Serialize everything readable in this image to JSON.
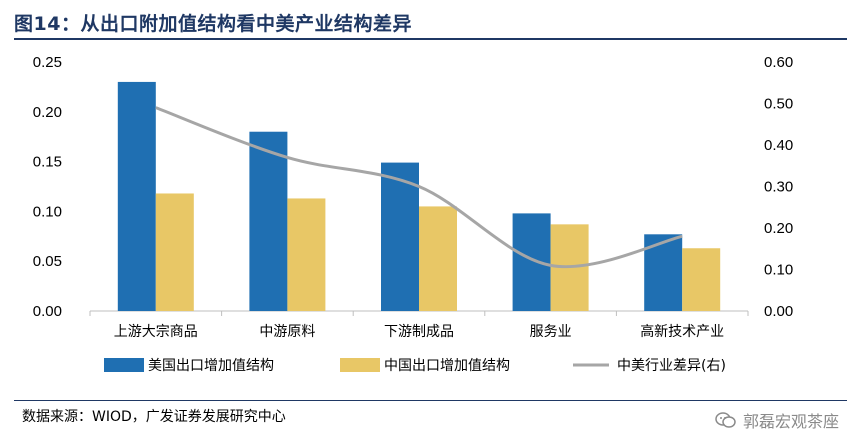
{
  "figure": {
    "title": "图14：从出口附加值结构看中美产业结构差异",
    "source": "数据来源：WIOD，广发证券发展研究中心",
    "watermark": "郭磊宏观茶座"
  },
  "colors": {
    "us_bar": "#1f6fb2",
    "cn_bar": "#e8c766",
    "diff_line": "#a6a6a6",
    "title": "#1f3864"
  },
  "chart_data": {
    "type": "bar",
    "categories": [
      "上游大宗商品",
      "中游原料",
      "下游制成品",
      "服务业",
      "高新技术产业"
    ],
    "series": [
      {
        "name": "美国出口增加值结构",
        "type": "bar",
        "axis": "left",
        "values": [
          0.23,
          0.18,
          0.149,
          0.098,
          0.077
        ]
      },
      {
        "name": "中国出口增加值结构",
        "type": "bar",
        "axis": "left",
        "values": [
          0.118,
          0.113,
          0.105,
          0.087,
          0.063
        ]
      },
      {
        "name": "中美行业差异(右)",
        "type": "line",
        "axis": "right",
        "values": [
          0.49,
          0.37,
          0.3,
          0.11,
          0.18
        ]
      }
    ],
    "y_left": {
      "min": 0,
      "max": 0.25,
      "ticks": [
        "0.00",
        "0.05",
        "0.10",
        "0.15",
        "0.20",
        "0.25"
      ]
    },
    "y_right": {
      "min": 0,
      "max": 0.6,
      "ticks": [
        "0.00",
        "0.10",
        "0.20",
        "0.30",
        "0.40",
        "0.50",
        "0.60"
      ]
    },
    "grid": false,
    "legend_position": "bottom"
  }
}
